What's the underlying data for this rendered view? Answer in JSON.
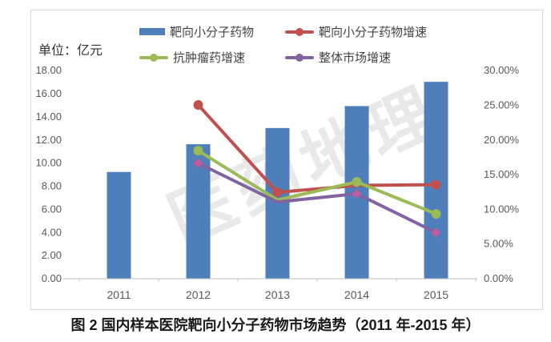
{
  "unit_label": "单位：亿元",
  "caption": "图 2 国内样本医院靶向小分子药物市场趋势（2011 年-2015 年）",
  "watermark": "医药地理",
  "colors": {
    "bar": "#4E7FBA",
    "red": "#C0504D",
    "green": "#9BBB59",
    "purple": "#8064A2",
    "magenta": "#C05BA0",
    "axis_text": "#595959",
    "axis_line": "#BFBFBF",
    "border": "#D9D9D9"
  },
  "legend": [
    {
      "label": "靶向小分子药物",
      "swatch": "bar",
      "color_key": "bar"
    },
    {
      "label": "靶向小分子药物增速",
      "swatch": "line-circle",
      "color_key": "red"
    },
    {
      "label": "抗肿瘤药增速",
      "swatch": "line-circle",
      "color_key": "green"
    },
    {
      "label": "整体市场增速",
      "swatch": "line-circle",
      "color_key": "purple"
    }
  ],
  "chart_data": {
    "type": "bar",
    "subtype": "bar+line combo, dual axis",
    "title": "图 2 国内样本医院靶向小分子药物市场趋势（2011 年-2015 年）",
    "categories": [
      "2011",
      "2012",
      "2013",
      "2014",
      "2015"
    ],
    "bar_series": {
      "name": "靶向小分子药物",
      "axis": "left",
      "unit": "亿元",
      "values": [
        9.2,
        11.6,
        13.0,
        14.9,
        17.0
      ]
    },
    "line_series": [
      {
        "name": "靶向小分子药物增速",
        "axis": "right",
        "color_key": "red",
        "marker": "circle",
        "values_pct": [
          null,
          25.0,
          12.4,
          13.4,
          13.5
        ],
        "marker_visible": [
          false,
          true,
          true,
          false,
          true
        ]
      },
      {
        "name": "抗肿瘤药增速",
        "axis": "right",
        "color_key": "green",
        "marker": "circle",
        "values_pct": [
          null,
          18.4,
          11.3,
          13.9,
          9.3
        ],
        "marker_visible": [
          false,
          true,
          false,
          true,
          true
        ]
      },
      {
        "name": "整体市场增速",
        "axis": "right",
        "color_key": "purple",
        "marker": "diamond",
        "marker_color_key": "magenta",
        "values_pct": [
          null,
          16.6,
          11.0,
          12.2,
          6.6
        ],
        "marker_visible": [
          false,
          true,
          false,
          true,
          true
        ]
      }
    ],
    "left_axis": {
      "min": 0,
      "max": 18,
      "step": 2,
      "tick_labels": [
        "0.00",
        "2.00",
        "4.00",
        "6.00",
        "8.00",
        "10.00",
        "12.00",
        "14.00",
        "16.00",
        "18.00"
      ]
    },
    "right_axis": {
      "min": 0,
      "max": 30,
      "step": 5,
      "tick_labels": [
        "0.00%",
        "5.00%",
        "10.00%",
        "15.00%",
        "20.00%",
        "25.00%",
        "30.00%"
      ]
    },
    "grid": false,
    "legend_position": "top"
  }
}
